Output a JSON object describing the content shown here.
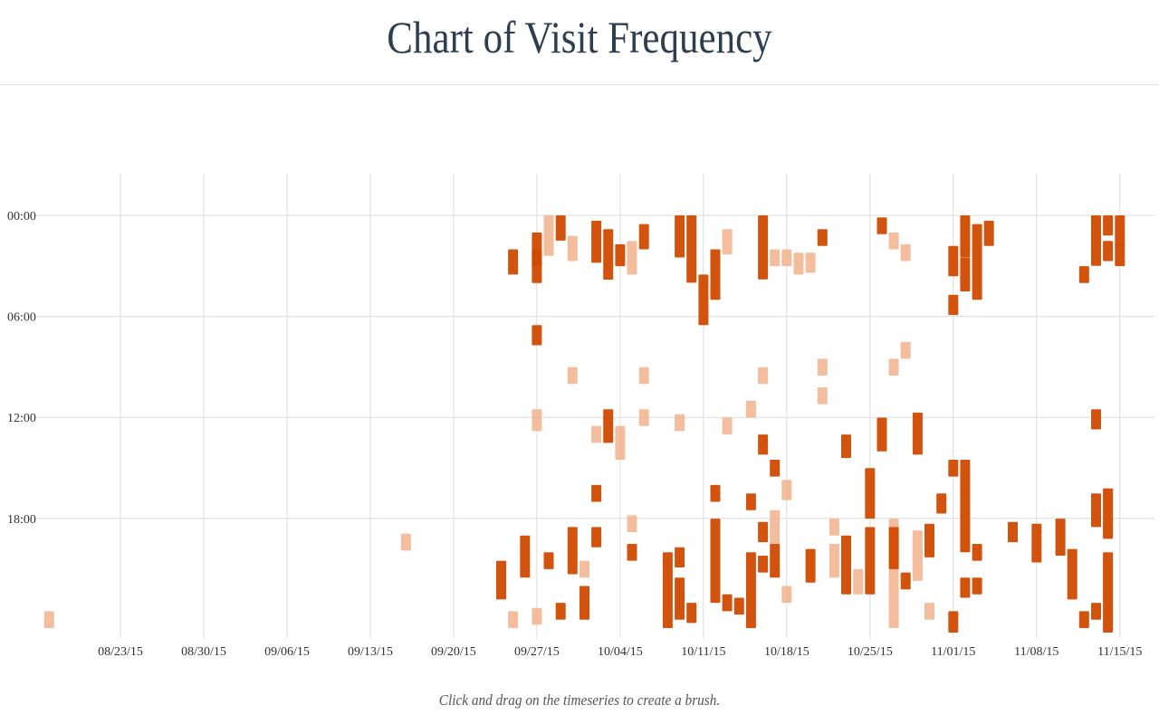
{
  "header": {
    "title": "Chart of Visit Frequency"
  },
  "caption": "Click and drag on the timeseries to create a brush.",
  "colors": {
    "dark": "#d04a00",
    "light": "#f2b28d",
    "grid": "#dcdcdc",
    "text": "#333333"
  },
  "chart_data": {
    "type": "heatmap",
    "x_axis": {
      "unit": "date",
      "range": [
        "2015-08-17",
        "2015-11-18"
      ],
      "tick_labels": [
        "08/23/15",
        "08/30/15",
        "09/06/15",
        "09/13/15",
        "09/20/15",
        "09/27/15",
        "10/04/15",
        "10/11/15",
        "10/18/15",
        "10/25/15",
        "11/01/15",
        "11/08/15",
        "11/15/15"
      ]
    },
    "y_axis": {
      "unit": "hour of day",
      "range": [
        0,
        25
      ],
      "tick_labels": [
        "00:00",
        "06:00",
        "12:00",
        "18:00"
      ],
      "tick_values": [
        0,
        6,
        12,
        18
      ]
    },
    "grid": true,
    "cells": [
      {
        "date": "2015-08-17",
        "hour": 24,
        "duration": 1,
        "intensity": "light"
      },
      {
        "date": "2015-09-16",
        "hour": 19.4,
        "duration": 1,
        "intensity": "light"
      },
      {
        "date": "2015-09-24",
        "hour": 21,
        "duration": 2.3,
        "intensity": "dark"
      },
      {
        "date": "2015-09-25",
        "hour": 2.5,
        "duration": 1.5,
        "intensity": "dark"
      },
      {
        "date": "2015-09-25",
        "hour": 24,
        "duration": 1,
        "intensity": "light"
      },
      {
        "date": "2015-09-27",
        "hour": 1.5,
        "duration": 2,
        "intensity": "dark"
      },
      {
        "date": "2015-09-27",
        "hour": 2.5,
        "duration": 2,
        "intensity": "dark"
      },
      {
        "date": "2015-09-27",
        "hour": 7,
        "duration": 1.2,
        "intensity": "dark"
      },
      {
        "date": "2015-09-27",
        "hour": 12,
        "duration": 1.3,
        "intensity": "light"
      },
      {
        "date": "2015-09-27",
        "hour": 23.8,
        "duration": 1,
        "intensity": "light"
      },
      {
        "date": "2015-09-26",
        "hour": 19.5,
        "duration": 2.5,
        "intensity": "dark"
      },
      {
        "date": "2015-09-28",
        "hour": 0.2,
        "duration": 2.4,
        "intensity": "light"
      },
      {
        "date": "2015-09-28",
        "hour": 20.5,
        "duration": 1,
        "intensity": "dark"
      },
      {
        "date": "2015-09-29",
        "hour": 0.2,
        "duration": 1.5,
        "intensity": "dark"
      },
      {
        "date": "2015-09-29",
        "hour": 23.5,
        "duration": 1,
        "intensity": "dark"
      },
      {
        "date": "2015-09-30",
        "hour": 1.7,
        "duration": 1.5,
        "intensity": "light"
      },
      {
        "date": "2015-09-30",
        "hour": 9.5,
        "duration": 1,
        "intensity": "light"
      },
      {
        "date": "2015-09-30",
        "hour": 19,
        "duration": 2.8,
        "intensity": "dark"
      },
      {
        "date": "2015-10-01",
        "hour": 21,
        "duration": 1,
        "intensity": "light"
      },
      {
        "date": "2015-10-01",
        "hour": 22.5,
        "duration": 2,
        "intensity": "dark"
      },
      {
        "date": "2015-10-02",
        "hour": 0.8,
        "duration": 2.5,
        "intensity": "dark"
      },
      {
        "date": "2015-10-02",
        "hour": 13,
        "duration": 1,
        "intensity": "light"
      },
      {
        "date": "2015-10-02",
        "hour": 16.5,
        "duration": 1,
        "intensity": "dark"
      },
      {
        "date": "2015-10-02",
        "hour": 19,
        "duration": 1.2,
        "intensity": "dark"
      },
      {
        "date": "2015-10-03",
        "hour": 1.3,
        "duration": 3,
        "intensity": "dark"
      },
      {
        "date": "2015-10-03",
        "hour": 12,
        "duration": 2,
        "intensity": "dark"
      },
      {
        "date": "2015-10-04",
        "hour": 2.2,
        "duration": 1.3,
        "intensity": "dark"
      },
      {
        "date": "2015-10-04",
        "hour": 13,
        "duration": 2,
        "intensity": "light"
      },
      {
        "date": "2015-10-05",
        "hour": 2,
        "duration": 2,
        "intensity": "light"
      },
      {
        "date": "2015-10-05",
        "hour": 18.3,
        "duration": 1,
        "intensity": "light"
      },
      {
        "date": "2015-10-05",
        "hour": 20,
        "duration": 1,
        "intensity": "dark"
      },
      {
        "date": "2015-10-06",
        "hour": 1,
        "duration": 1.5,
        "intensity": "dark"
      },
      {
        "date": "2015-10-06",
        "hour": 9.5,
        "duration": 1,
        "intensity": "light"
      },
      {
        "date": "2015-10-06",
        "hour": 12,
        "duration": 1,
        "intensity": "light"
      },
      {
        "date": "2015-10-08",
        "hour": 20.5,
        "duration": 4.5,
        "intensity": "dark"
      },
      {
        "date": "2015-10-09",
        "hour": 0.3,
        "duration": 2.5,
        "intensity": "dark"
      },
      {
        "date": "2015-10-09",
        "hour": 12.3,
        "duration": 1,
        "intensity": "light"
      },
      {
        "date": "2015-10-09",
        "hour": 20.2,
        "duration": 1.2,
        "intensity": "dark"
      },
      {
        "date": "2015-10-09",
        "hour": 22,
        "duration": 2.5,
        "intensity": "dark"
      },
      {
        "date": "2015-10-10",
        "hour": 0.2,
        "duration": 4,
        "intensity": "dark"
      },
      {
        "date": "2015-10-10",
        "hour": 23.5,
        "duration": 1.2,
        "intensity": "dark"
      },
      {
        "date": "2015-10-11",
        "hour": 4,
        "duration": 3,
        "intensity": "dark"
      },
      {
        "date": "2015-10-12",
        "hour": 2.5,
        "duration": 3,
        "intensity": "dark"
      },
      {
        "date": "2015-10-12",
        "hour": 16.5,
        "duration": 1,
        "intensity": "dark"
      },
      {
        "date": "2015-10-12",
        "hour": 18.5,
        "duration": 5,
        "intensity": "dark"
      },
      {
        "date": "2015-10-13",
        "hour": 1.3,
        "duration": 1.5,
        "intensity": "light"
      },
      {
        "date": "2015-10-13",
        "hour": 12.5,
        "duration": 1,
        "intensity": "light"
      },
      {
        "date": "2015-10-13",
        "hour": 23,
        "duration": 1,
        "intensity": "dark"
      },
      {
        "date": "2015-10-14",
        "hour": 23.2,
        "duration": 1,
        "intensity": "dark"
      },
      {
        "date": "2015-10-15",
        "hour": 11.5,
        "duration": 1,
        "intensity": "light"
      },
      {
        "date": "2015-10-15",
        "hour": 17,
        "duration": 1,
        "intensity": "dark"
      },
      {
        "date": "2015-10-15",
        "hour": 20.5,
        "duration": 4.5,
        "intensity": "dark"
      },
      {
        "date": "2015-10-16",
        "hour": 0.2,
        "duration": 3.8,
        "intensity": "dark"
      },
      {
        "date": "2015-10-16",
        "hour": 9.5,
        "duration": 1,
        "intensity": "light"
      },
      {
        "date": "2015-10-16",
        "hour": 13.5,
        "duration": 1.2,
        "intensity": "dark"
      },
      {
        "date": "2015-10-16",
        "hour": 18.7,
        "duration": 1.2,
        "intensity": "dark"
      },
      {
        "date": "2015-10-16",
        "hour": 20.7,
        "duration": 1,
        "intensity": "dark"
      },
      {
        "date": "2015-10-17",
        "hour": 2.5,
        "duration": 1,
        "intensity": "light"
      },
      {
        "date": "2015-10-17",
        "hour": 15,
        "duration": 1,
        "intensity": "dark"
      },
      {
        "date": "2015-10-17",
        "hour": 18,
        "duration": 2,
        "intensity": "light"
      },
      {
        "date": "2015-10-17",
        "hour": 20,
        "duration": 2,
        "intensity": "dark"
      },
      {
        "date": "2015-10-18",
        "hour": 2.5,
        "duration": 1,
        "intensity": "light"
      },
      {
        "date": "2015-10-18",
        "hour": 16.2,
        "duration": 1.2,
        "intensity": "light"
      },
      {
        "date": "2015-10-18",
        "hour": 22.5,
        "duration": 1,
        "intensity": "light"
      },
      {
        "date": "2015-10-19",
        "hour": 2.7,
        "duration": 1.3,
        "intensity": "light"
      },
      {
        "date": "2015-10-20",
        "hour": 2.7,
        "duration": 1.2,
        "intensity": "light"
      },
      {
        "date": "2015-10-20",
        "hour": 20.3,
        "duration": 2,
        "intensity": "dark"
      },
      {
        "date": "2015-10-21",
        "hour": 1.3,
        "duration": 1,
        "intensity": "dark"
      },
      {
        "date": "2015-10-21",
        "hour": 9,
        "duration": 1,
        "intensity": "light"
      },
      {
        "date": "2015-10-21",
        "hour": 10.7,
        "duration": 1,
        "intensity": "light"
      },
      {
        "date": "2015-10-22",
        "hour": 18.5,
        "duration": 1,
        "intensity": "light"
      },
      {
        "date": "2015-10-22",
        "hour": 20,
        "duration": 2,
        "intensity": "light"
      },
      {
        "date": "2015-10-23",
        "hour": 13.5,
        "duration": 1.4,
        "intensity": "dark"
      },
      {
        "date": "2015-10-23",
        "hour": 19.5,
        "duration": 3.5,
        "intensity": "dark"
      },
      {
        "date": "2015-10-24",
        "hour": 21.5,
        "duration": 1.5,
        "intensity": "light"
      },
      {
        "date": "2015-10-25",
        "hour": 15.5,
        "duration": 3,
        "intensity": "dark"
      },
      {
        "date": "2015-10-25",
        "hour": 19,
        "duration": 4,
        "intensity": "dark"
      },
      {
        "date": "2015-10-26",
        "hour": 0.6,
        "duration": 1,
        "intensity": "dark"
      },
      {
        "date": "2015-10-26",
        "hour": 12.5,
        "duration": 2,
        "intensity": "dark"
      },
      {
        "date": "2015-10-27",
        "hour": 1.5,
        "duration": 1,
        "intensity": "light"
      },
      {
        "date": "2015-10-27",
        "hour": 9,
        "duration": 1,
        "intensity": "light"
      },
      {
        "date": "2015-10-27",
        "hour": 18.5,
        "duration": 6.5,
        "intensity": "light"
      },
      {
        "date": "2015-10-27",
        "hour": 19,
        "duration": 2.5,
        "intensity": "dark"
      },
      {
        "date": "2015-10-28",
        "hour": 2.2,
        "duration": 1,
        "intensity": "light"
      },
      {
        "date": "2015-10-28",
        "hour": 8,
        "duration": 1,
        "intensity": "light"
      },
      {
        "date": "2015-10-28",
        "hour": 21.7,
        "duration": 1,
        "intensity": "dark"
      },
      {
        "date": "2015-10-29",
        "hour": 12.2,
        "duration": 2.5,
        "intensity": "dark"
      },
      {
        "date": "2015-10-29",
        "hour": 19.2,
        "duration": 3,
        "intensity": "light"
      },
      {
        "date": "2015-10-30",
        "hour": 18.8,
        "duration": 2,
        "intensity": "dark"
      },
      {
        "date": "2015-10-30",
        "hour": 23.5,
        "duration": 1,
        "intensity": "light"
      },
      {
        "date": "2015-10-31",
        "hour": 17,
        "duration": 1.2,
        "intensity": "dark"
      },
      {
        "date": "2015-11-01",
        "hour": 2.3,
        "duration": 1.8,
        "intensity": "dark"
      },
      {
        "date": "2015-11-01",
        "hour": 5.2,
        "duration": 1.2,
        "intensity": "dark"
      },
      {
        "date": "2015-11-01",
        "hour": 15,
        "duration": 1,
        "intensity": "dark"
      },
      {
        "date": "2015-11-01",
        "hour": 24,
        "duration": 1.5,
        "intensity": "dark"
      },
      {
        "date": "2015-11-02",
        "hour": 0,
        "duration": 2.5,
        "intensity": "dark"
      },
      {
        "date": "2015-11-02",
        "hour": 3,
        "duration": 2,
        "intensity": "dark"
      },
      {
        "date": "2015-11-02",
        "hour": 15,
        "duration": 5.5,
        "intensity": "dark"
      },
      {
        "date": "2015-11-02",
        "hour": 22,
        "duration": 1.2,
        "intensity": "dark"
      },
      {
        "date": "2015-11-03",
        "hour": 1,
        "duration": 4.5,
        "intensity": "dark"
      },
      {
        "date": "2015-11-03",
        "hour": 20,
        "duration": 1,
        "intensity": "dark"
      },
      {
        "date": "2015-11-03",
        "hour": 22,
        "duration": 1,
        "intensity": "dark"
      },
      {
        "date": "2015-11-04",
        "hour": 0.8,
        "duration": 1.5,
        "intensity": "dark"
      },
      {
        "date": "2015-11-06",
        "hour": 18.7,
        "duration": 1.2,
        "intensity": "dark"
      },
      {
        "date": "2015-11-08",
        "hour": 18.8,
        "duration": 2.3,
        "intensity": "dark"
      },
      {
        "date": "2015-11-10",
        "hour": 18.5,
        "duration": 2.2,
        "intensity": "dark"
      },
      {
        "date": "2015-11-11",
        "hour": 20.3,
        "duration": 3,
        "intensity": "dark"
      },
      {
        "date": "2015-11-12",
        "hour": 3.5,
        "duration": 1,
        "intensity": "dark"
      },
      {
        "date": "2015-11-12",
        "hour": 24,
        "duration": 1,
        "intensity": "dark"
      },
      {
        "date": "2015-11-13",
        "hour": 0,
        "duration": 3,
        "intensity": "dark"
      },
      {
        "date": "2015-11-13",
        "hour": 12,
        "duration": 1.2,
        "intensity": "dark"
      },
      {
        "date": "2015-11-13",
        "hour": 17,
        "duration": 2,
        "intensity": "dark"
      },
      {
        "date": "2015-11-13",
        "hour": 23.5,
        "duration": 1,
        "intensity": "dark"
      },
      {
        "date": "2015-11-14",
        "hour": 0.3,
        "duration": 1.2,
        "intensity": "dark"
      },
      {
        "date": "2015-11-14",
        "hour": 2,
        "duration": 1.2,
        "intensity": "dark"
      },
      {
        "date": "2015-11-14",
        "hour": 16.7,
        "duration": 3,
        "intensity": "dark"
      },
      {
        "date": "2015-11-14",
        "hour": 20.5,
        "duration": 5,
        "intensity": "dark"
      },
      {
        "date": "2015-11-15",
        "hour": 0,
        "duration": 1.8,
        "intensity": "dark"
      },
      {
        "date": "2015-11-15",
        "hour": 2.2,
        "duration": 1.3,
        "intensity": "dark"
      }
    ]
  }
}
